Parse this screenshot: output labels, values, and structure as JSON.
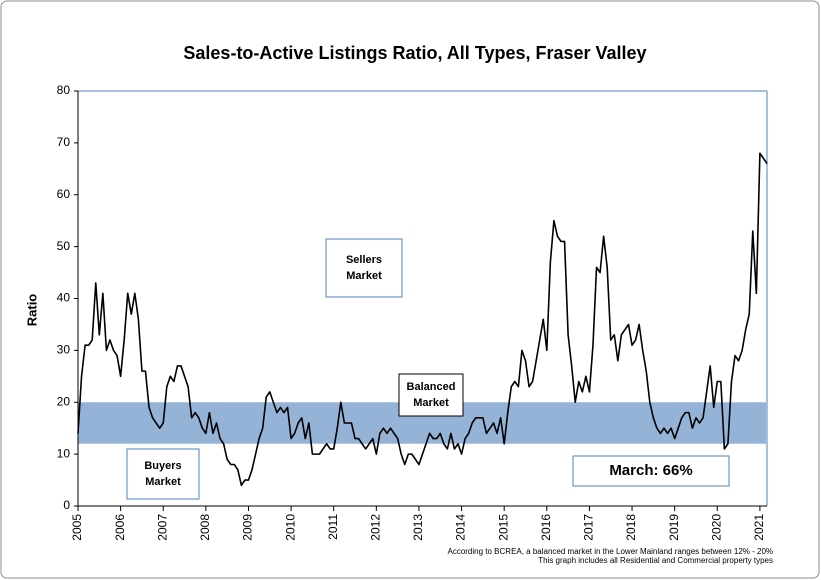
{
  "chart_data": {
    "type": "line",
    "title": "Sales-to-Active Listings Ratio, All Types, Fraser Valley",
    "y_label": "Ratio",
    "categories": [
      "2005",
      null,
      null,
      null,
      null,
      null,
      null,
      null,
      null,
      null,
      null,
      null,
      "2006",
      null,
      null,
      null,
      null,
      null,
      null,
      null,
      null,
      null,
      null,
      null,
      "2007",
      null,
      null,
      null,
      null,
      null,
      null,
      null,
      null,
      null,
      null,
      null,
      "2008",
      null,
      null,
      null,
      null,
      null,
      null,
      null,
      null,
      null,
      null,
      null,
      "2009",
      null,
      null,
      null,
      null,
      null,
      null,
      null,
      null,
      null,
      null,
      null,
      "2010",
      null,
      null,
      null,
      null,
      null,
      null,
      null,
      null,
      null,
      null,
      null,
      "2011",
      null,
      null,
      null,
      null,
      null,
      null,
      null,
      null,
      null,
      null,
      null,
      "2012",
      null,
      null,
      null,
      null,
      null,
      null,
      null,
      null,
      null,
      null,
      null,
      "2013",
      null,
      null,
      null,
      null,
      null,
      null,
      null,
      null,
      null,
      null,
      null,
      "2014",
      null,
      null,
      null,
      null,
      null,
      null,
      null,
      null,
      null,
      null,
      null,
      "2015",
      null,
      null,
      null,
      null,
      null,
      null,
      null,
      null,
      null,
      null,
      null,
      "2016",
      null,
      null,
      null,
      null,
      null,
      null,
      null,
      null,
      null,
      null,
      null,
      "2017",
      null,
      null,
      null,
      null,
      null,
      null,
      null,
      null,
      null,
      null,
      null,
      "2018",
      null,
      null,
      null,
      null,
      null,
      null,
      null,
      null,
      null,
      null,
      null,
      "2019",
      null,
      null,
      null,
      null,
      null,
      null,
      null,
      null,
      null,
      null,
      null,
      "2020",
      null,
      null,
      null,
      null,
      null,
      null,
      null,
      null,
      null,
      null,
      null,
      "2021",
      null,
      null
    ],
    "series": [
      {
        "name": "Ratio",
        "color": "#000000",
        "values": [
          14,
          25,
          31,
          31,
          32,
          43,
          33,
          41,
          30,
          32,
          30,
          29,
          25,
          32,
          41,
          37,
          41,
          36,
          26,
          26,
          19,
          17,
          16,
          15,
          16,
          23,
          25,
          24,
          27,
          27,
          25,
          23,
          17,
          18,
          17,
          15,
          14,
          18,
          14,
          16,
          13,
          12,
          9,
          8,
          8,
          7,
          4,
          5,
          5,
          7,
          10,
          13,
          15,
          21,
          22,
          20,
          18,
          19,
          18,
          19,
          13,
          14,
          16,
          17,
          13,
          16,
          10,
          10,
          10,
          11,
          12,
          11,
          11,
          15,
          20,
          16,
          16,
          16,
          13,
          13,
          12,
          11,
          12,
          13,
          10,
          14,
          15,
          14,
          15,
          14,
          13,
          10,
          8,
          10,
          10,
          9,
          8,
          10,
          12,
          14,
          13,
          13,
          14,
          12,
          11,
          14,
          11,
          12,
          10,
          13,
          14,
          16,
          17,
          17,
          17,
          14,
          15,
          16,
          14,
          17,
          12,
          18,
          23,
          24,
          23,
          30,
          28,
          23,
          24,
          28,
          32,
          36,
          30,
          47,
          55,
          52,
          51,
          51,
          33,
          27,
          20,
          24,
          22,
          25,
          22,
          31,
          46,
          45,
          52,
          46,
          32,
          33,
          28,
          33,
          34,
          35,
          31,
          32,
          35,
          30,
          26,
          20,
          17,
          15,
          14,
          15,
          14,
          15,
          13,
          15,
          17,
          18,
          18,
          15,
          17,
          16,
          17,
          22,
          27,
          19,
          24,
          24,
          11,
          12,
          24,
          29,
          28,
          30,
          34,
          37,
          53,
          41,
          68,
          67,
          66
        ]
      }
    ],
    "ylim": [
      0,
      80
    ],
    "yticks": [
      0,
      10,
      20,
      30,
      40,
      50,
      60,
      70,
      80
    ],
    "band": {
      "low": 12,
      "high": 20,
      "color": "#95b3d7"
    },
    "annotations": {
      "sellers": [
        "Sellers",
        "Market"
      ],
      "balanced": [
        "Balanced",
        "Market"
      ],
      "buyers": [
        "Buyers",
        "Market"
      ],
      "latest": "March: 66%"
    },
    "footnotes": [
      "According to BCREA, a balanced market in the Lower Mainland ranges between 12% - 20%",
      "This graph includes all Residential and Commercial property types"
    ]
  }
}
